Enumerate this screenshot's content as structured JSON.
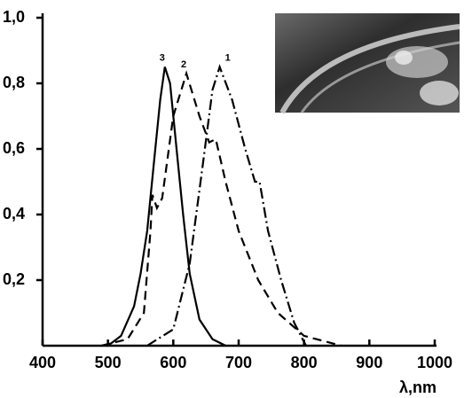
{
  "chart_data": {
    "type": "line",
    "x_label": "λ,nm",
    "xlim": [
      400,
      1000
    ],
    "xticks": [
      400,
      500,
      600,
      700,
      800,
      900,
      1000
    ],
    "ylim": [
      0,
      1
    ],
    "yticks": [
      {
        "value": 0.2,
        "label": "0,2"
      },
      {
        "value": 0.4,
        "label": "0,4"
      },
      {
        "value": 0.6,
        "label": "0,6"
      },
      {
        "value": 0.8,
        "label": "0,8"
      },
      {
        "value": 1,
        "label": "1,0"
      }
    ],
    "series": [
      {
        "name": "1",
        "color": "#000000",
        "dash": "dashdot",
        "x": [
          560,
          600,
          625,
          645,
          660,
          671,
          690,
          710,
          725,
          732,
          745,
          765,
          785,
          803
        ],
        "values": [
          0,
          0.05,
          0.25,
          0.55,
          0.78,
          0.85,
          0.75,
          0.6,
          0.5,
          0.5,
          0.35,
          0.2,
          0.07,
          0
        ]
      },
      {
        "name": "2",
        "color": "#000000",
        "dash": "dashed",
        "x": [
          490,
          530,
          555,
          565,
          568,
          575,
          583,
          600,
          620,
          640,
          655,
          665,
          680,
          700,
          730,
          760,
          800,
          857
        ],
        "values": [
          0,
          0.02,
          0.1,
          0.35,
          0.46,
          0.42,
          0.45,
          0.7,
          0.83,
          0.7,
          0.62,
          0.63,
          0.5,
          0.35,
          0.2,
          0.1,
          0.03,
          0
        ]
      },
      {
        "name": "3",
        "color": "#000000",
        "dash": "solid",
        "x": [
          500,
          520,
          540,
          550,
          560,
          570,
          580,
          587,
          595,
          605,
          615,
          625,
          640,
          660,
          680
        ],
        "values": [
          0,
          0.03,
          0.12,
          0.22,
          0.35,
          0.55,
          0.75,
          0.85,
          0.8,
          0.6,
          0.4,
          0.22,
          0.08,
          0.02,
          0
        ]
      }
    ]
  }
}
